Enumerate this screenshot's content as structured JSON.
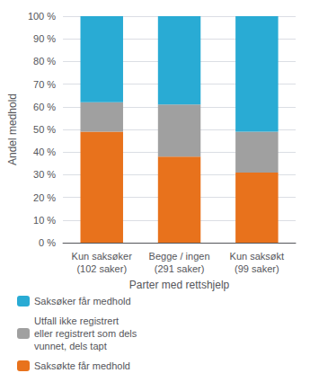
{
  "chart_data": {
    "type": "bar",
    "stacked": true,
    "categories": [
      "Kun saksøker\n(102 saker)",
      "Begge / ingen\n(291 saker)",
      "Kun saksøkt\n(99 saker)"
    ],
    "series": [
      {
        "name": "Saksøkte får medhold",
        "color": "#E8721C",
        "values": [
          49,
          38,
          31
        ]
      },
      {
        "name": "Utfall ikke registrert\neller registrert som dels\nvunnet, dels tapt",
        "color": "#A0A0A0",
        "values": [
          13,
          23,
          18
        ]
      },
      {
        "name": "Saksøker får medhold",
        "color": "#29ABD4",
        "values": [
          38,
          39,
          51
        ]
      }
    ],
    "ylabel": "Andel medhold",
    "xlabel": "Parter med rettshjelp",
    "ylim": [
      0,
      100
    ],
    "yticks": [
      {
        "value": 0,
        "label": "0 %"
      },
      {
        "value": 10,
        "label": "10 %"
      },
      {
        "value": 20,
        "label": "20 %"
      },
      {
        "value": 30,
        "label": "30 %"
      },
      {
        "value": 40,
        "label": "40 %"
      },
      {
        "value": 50,
        "label": "50 %"
      },
      {
        "value": 60,
        "label": "60 %"
      },
      {
        "value": 70,
        "label": "70 %"
      },
      {
        "value": 80,
        "label": "80 %"
      },
      {
        "value": 90,
        "label": "90 %"
      },
      {
        "value": 100,
        "label": "100 %"
      }
    ],
    "grid": true,
    "legend": "bottom"
  }
}
